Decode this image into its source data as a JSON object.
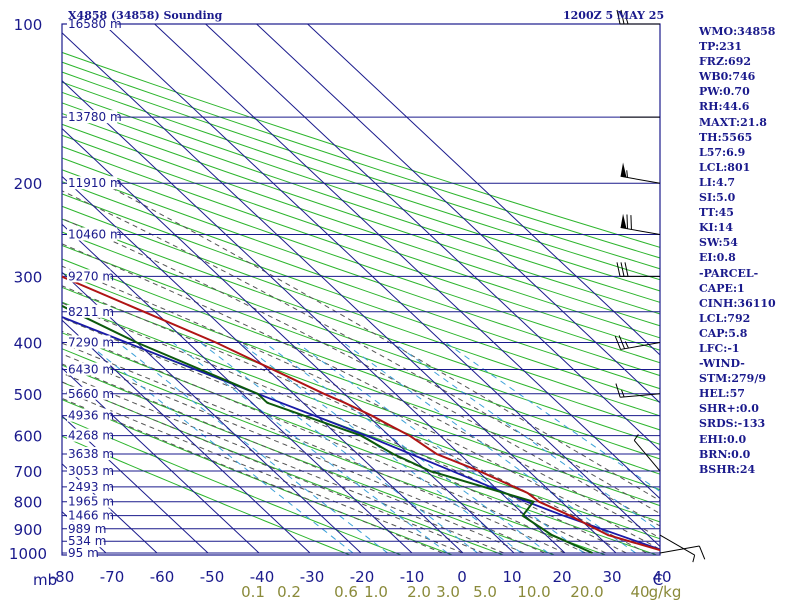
{
  "title_left": "X4858 (34858) Sounding",
  "title_right": "1200Z  5 MAY 25",
  "indices": [
    "WMO:34858",
    "TP:231",
    "FRZ:692",
    "WB0:746",
    "PW:0.70",
    "RH:44.6",
    "MAXT:21.8",
    "TH:5565",
    "L57:6.9",
    "LCL:801",
    "LI:4.7",
    "SI:5.0",
    "TT:45",
    "KI:14",
    "SW:54",
    "EI:0.8",
    "-PARCEL-",
    "CAPE:1",
    "CINH:36110",
    "LCL:792",
    "CAP:5.8",
    "LFC:-1",
    "-WIND-",
    "STM:279/9",
    "HEL:57",
    "SHR+:0.0",
    "SRDS:-133",
    "EHI:0.0",
    "BRN:0.0",
    "BSHR:24"
  ],
  "colors": {
    "frame": "#1a1a8c",
    "isobar": "#1a1a8c",
    "dry_adiabat": "#2db52d",
    "moist_adiabat": "#555555",
    "mixing_ratio": "#3ba0d8",
    "temperature": "#b01414",
    "dewpoint": "#0c5a0c",
    "parcel": "#1a1aa8",
    "mixing_label": "#8a8a3a"
  },
  "chart_data": {
    "type": "skew-t",
    "title": "X4858 (34858) Sounding",
    "pressure_axis_label": "mb",
    "pressure_levels": [
      100,
      200,
      300,
      400,
      500,
      600,
      700,
      800,
      900,
      1000
    ],
    "temperature_ticks": [
      -80,
      -70,
      -60,
      -50,
      -40,
      -30,
      -20,
      -10,
      0,
      10,
      20,
      30,
      40
    ],
    "x_unit_label": "C",
    "mixing_ratio_labels": [
      "0.1",
      "0.2",
      "0.6",
      "1.0",
      "2.0",
      "3.0",
      "5.0",
      "10.0",
      "20.0",
      "40",
      "g/kg"
    ],
    "mixing_ratio_values": [
      0.1,
      0.2,
      0.6,
      1.0,
      2.0,
      3.0,
      5.0,
      10.0,
      20.0,
      40
    ],
    "height_labels": [
      {
        "p": 100,
        "text": "16580 m"
      },
      {
        "p": 150,
        "text": "13780 m"
      },
      {
        "p": 200,
        "text": "11910 m"
      },
      {
        "p": 250,
        "text": "10460 m"
      },
      {
        "p": 300,
        "text": "9270 m"
      },
      {
        "p": 350,
        "text": "8211 m"
      },
      {
        "p": 400,
        "text": "7290 m"
      },
      {
        "p": 450,
        "text": "6430 m"
      },
      {
        "p": 500,
        "text": "5660 m"
      },
      {
        "p": 550,
        "text": "4936 m"
      },
      {
        "p": 600,
        "text": "4268 m"
      },
      {
        "p": 650,
        "text": "3638 m"
      },
      {
        "p": 700,
        "text": "3053 m"
      },
      {
        "p": 750,
        "text": "2493 m"
      },
      {
        "p": 800,
        "text": "1965 m"
      },
      {
        "p": 850,
        "text": "1466 m"
      },
      {
        "p": 900,
        "text": "989 m"
      },
      {
        "p": 950,
        "text": "534 m"
      },
      {
        "p": 1000,
        "text": "95 m"
      }
    ],
    "temperature_profile": [
      {
        "p": 1000,
        "t": 20.6
      },
      {
        "p": 925,
        "t": 12.2
      },
      {
        "p": 850,
        "t": 8.8
      },
      {
        "p": 800,
        "t": 5.6
      },
      {
        "p": 770,
        "t": 5.2
      },
      {
        "p": 700,
        "t": 0.3
      },
      {
        "p": 650,
        "t": -4.5
      },
      {
        "p": 600,
        "t": -6.0
      },
      {
        "p": 550,
        "t": -9.2
      },
      {
        "p": 520,
        "t": -11.8
      },
      {
        "p": 500,
        "t": -14.0
      },
      {
        "p": 400,
        "t": -24.5
      },
      {
        "p": 300,
        "t": -41.0
      },
      {
        "p": 250,
        "t": -50.0
      },
      {
        "p": 230,
        "t": -56.0
      },
      {
        "p": 200,
        "t": -57.0
      },
      {
        "p": 160,
        "t": -55.0
      },
      {
        "p": 150,
        "t": -57.0
      },
      {
        "p": 100,
        "t": -67.0
      }
    ],
    "dewpoint_profile": [
      {
        "p": 1000,
        "t": 5.4
      },
      {
        "p": 925,
        "t": 1.2
      },
      {
        "p": 850,
        "t": -0.5
      },
      {
        "p": 800,
        "t": 4.5
      },
      {
        "p": 700,
        "t": -9.3
      },
      {
        "p": 650,
        "t": -13.0
      },
      {
        "p": 600,
        "t": -15.5
      },
      {
        "p": 520,
        "t": -27.0
      },
      {
        "p": 500,
        "t": -27.0
      },
      {
        "p": 400,
        "t": -40.0
      },
      {
        "p": 350,
        "t": -46.0
      },
      {
        "p": 300,
        "t": -52.0
      },
      {
        "p": 250,
        "t": -58.0
      },
      {
        "p": 230,
        "t": -65.0
      },
      {
        "p": 200,
        "t": -70.0
      },
      {
        "p": 160,
        "t": -70.0
      },
      {
        "p": 150,
        "t": -72.0
      },
      {
        "p": 100,
        "t": -85.0
      }
    ],
    "parcel_profile": [
      {
        "p": 1000,
        "t": 20.6
      },
      {
        "p": 850,
        "t": 7.5
      },
      {
        "p": 792,
        "t": 2.5
      },
      {
        "p": 700,
        "t": -5.0
      },
      {
        "p": 600,
        "t": -14.5
      },
      {
        "p": 500,
        "t": -27.0
      },
      {
        "p": 400,
        "t": -42.0
      },
      {
        "p": 300,
        "t": -61.0
      },
      {
        "p": 200,
        "t": -80.0
      }
    ],
    "wind_barbs": [
      {
        "p": 100,
        "dir": 270,
        "spd": 25
      },
      {
        "p": 150,
        "dir": 270,
        "spd": 0
      },
      {
        "p": 200,
        "dir": 280,
        "spd": 55
      },
      {
        "p": 250,
        "dir": 280,
        "spd": 70
      },
      {
        "p": 300,
        "dir": 270,
        "spd": 30
      },
      {
        "p": 400,
        "dir": 260,
        "spd": 25
      },
      {
        "p": 500,
        "dir": 265,
        "spd": 15
      },
      {
        "p": 700,
        "dir": 320,
        "spd": 5
      },
      {
        "p": 925,
        "dir": 120,
        "spd": 5
      },
      {
        "p": 1000,
        "dir": 80,
        "spd": 10
      }
    ]
  }
}
